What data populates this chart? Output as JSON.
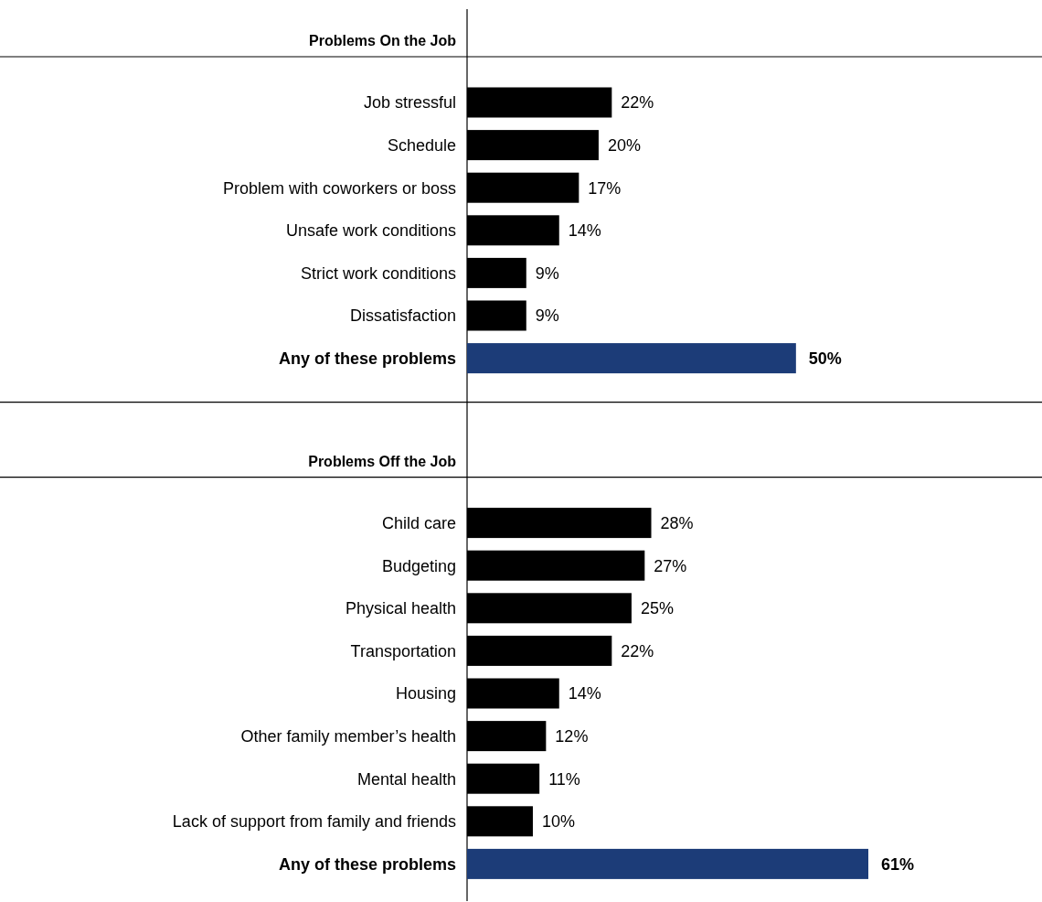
{
  "chart_data": [
    {
      "type": "bar",
      "orientation": "horizontal",
      "title": "Problems On the Job",
      "categories": [
        "Job stressful",
        "Schedule",
        "Problem with coworkers or boss",
        "Unsafe work conditions",
        "Strict work conditions",
        "Dissatisfaction",
        "Any of these problems"
      ],
      "values": [
        22,
        20,
        17,
        14,
        9,
        9,
        50
      ],
      "colors": [
        "#000000",
        "#000000",
        "#000000",
        "#000000",
        "#000000",
        "#000000",
        "#1c3c78"
      ],
      "value_labels": [
        "22%",
        "20%",
        "17%",
        "14%",
        "9%",
        "9%",
        "50%"
      ]
    },
    {
      "type": "bar",
      "orientation": "horizontal",
      "title": "Problems Off the Job",
      "categories": [
        "Child care",
        "Budgeting",
        "Physical health",
        "Transportation",
        "Housing",
        "Other family member’s health",
        "Mental health",
        "Lack of support from family and friends",
        "Any of these problems"
      ],
      "values": [
        28,
        27,
        25,
        22,
        14,
        12,
        11,
        10,
        61
      ],
      "colors": [
        "#000000",
        "#000000",
        "#000000",
        "#000000",
        "#000000",
        "#000000",
        "#000000",
        "#000000",
        "#1c3c78"
      ],
      "value_labels": [
        "28%",
        "27%",
        "25%",
        "22%",
        "14%",
        "12%",
        "11%",
        "10%",
        "61%"
      ]
    }
  ]
}
